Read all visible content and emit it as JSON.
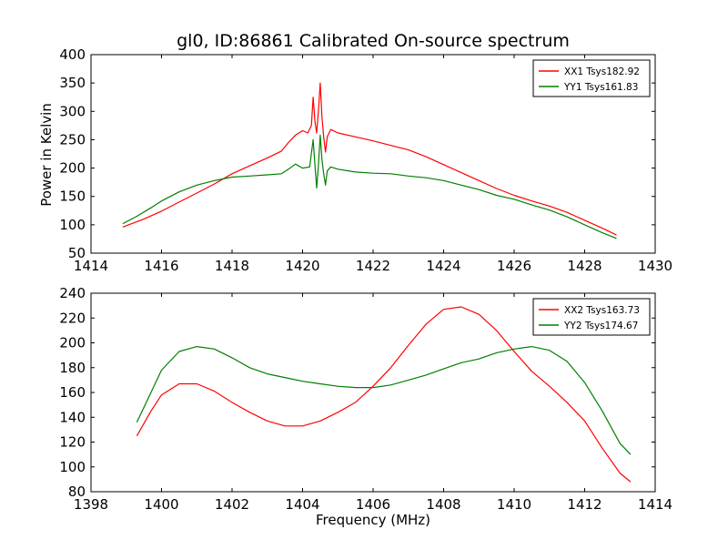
{
  "colors": {
    "series_a": "#ff0000",
    "series_b": "#007f00",
    "axes": "#000000",
    "background": "#ffffff"
  },
  "chart_data": [
    {
      "type": "line",
      "title": "gl0, ID:86861 Calibrated On-source spectrum",
      "xlabel": "",
      "ylabel": "Power in Kelvin",
      "xlim": [
        1414,
        1430
      ],
      "ylim": [
        50,
        400
      ],
      "xticks": [
        1414,
        1416,
        1418,
        1420,
        1422,
        1424,
        1426,
        1428,
        1430
      ],
      "yticks": [
        50,
        100,
        150,
        200,
        250,
        300,
        350,
        400
      ],
      "grid": false,
      "legend": "top-right",
      "series": [
        {
          "name": "XX1 Tsys182.92",
          "color": "#ff0000",
          "points": [
            [
              1414.9,
              96
            ],
            [
              1415.5,
              110
            ],
            [
              1416,
              124
            ],
            [
              1416.5,
              140
            ],
            [
              1417,
              156
            ],
            [
              1417.5,
              172
            ],
            [
              1418,
              190
            ],
            [
              1418.5,
              204
            ],
            [
              1419,
              218
            ],
            [
              1419.4,
              230
            ],
            [
              1419.6,
              245
            ],
            [
              1419.8,
              258
            ],
            [
              1420.0,
              266
            ],
            [
              1420.15,
              262
            ],
            [
              1420.25,
              275
            ],
            [
              1420.3,
              325
            ],
            [
              1420.35,
              282
            ],
            [
              1420.4,
              262
            ],
            [
              1420.45,
              300
            ],
            [
              1420.5,
              350
            ],
            [
              1420.55,
              290
            ],
            [
              1420.6,
              255
            ],
            [
              1420.65,
              228
            ],
            [
              1420.7,
              255
            ],
            [
              1420.8,
              268
            ],
            [
              1421,
              262
            ],
            [
              1421.5,
              255
            ],
            [
              1422,
              248
            ],
            [
              1422.5,
              240
            ],
            [
              1423,
              232
            ],
            [
              1423.5,
              220
            ],
            [
              1424,
              206
            ],
            [
              1424.5,
              192
            ],
            [
              1425,
              178
            ],
            [
              1425.5,
              164
            ],
            [
              1426,
              152
            ],
            [
              1426.5,
              142
            ],
            [
              1427,
              133
            ],
            [
              1427.5,
              122
            ],
            [
              1428,
              108
            ],
            [
              1428.5,
              94
            ],
            [
              1428.9,
              82
            ]
          ]
        },
        {
          "name": "YY1 Tsys161.83",
          "color": "#007f00",
          "points": [
            [
              1414.9,
              102
            ],
            [
              1415.3,
              115
            ],
            [
              1415.7,
              130
            ],
            [
              1416,
              142
            ],
            [
              1416.5,
              158
            ],
            [
              1417,
              170
            ],
            [
              1417.5,
              178
            ],
            [
              1418,
              184
            ],
            [
              1418.5,
              186
            ],
            [
              1419,
              188
            ],
            [
              1419.4,
              190
            ],
            [
              1419.6,
              198
            ],
            [
              1419.8,
              207
            ],
            [
              1420.0,
              200
            ],
            [
              1420.2,
              202
            ],
            [
              1420.3,
              250
            ],
            [
              1420.35,
              205
            ],
            [
              1420.4,
              165
            ],
            [
              1420.45,
              205
            ],
            [
              1420.5,
              258
            ],
            [
              1420.55,
              215
            ],
            [
              1420.6,
              190
            ],
            [
              1420.65,
              170
            ],
            [
              1420.7,
              195
            ],
            [
              1420.8,
              202
            ],
            [
              1421,
              198
            ],
            [
              1421.5,
              193
            ],
            [
              1422,
              191
            ],
            [
              1422.5,
              190
            ],
            [
              1423,
              186
            ],
            [
              1423.5,
              183
            ],
            [
              1424,
              178
            ],
            [
              1424.5,
              170
            ],
            [
              1425,
              162
            ],
            [
              1425.5,
              152
            ],
            [
              1426,
              145
            ],
            [
              1426.5,
              135
            ],
            [
              1427,
              126
            ],
            [
              1427.5,
              114
            ],
            [
              1428,
              100
            ],
            [
              1428.5,
              86
            ],
            [
              1428.9,
              76
            ]
          ]
        }
      ]
    },
    {
      "type": "line",
      "title": "",
      "xlabel": "Frequency (MHz)",
      "ylabel": "",
      "xlim": [
        1398,
        1414
      ],
      "ylim": [
        80,
        240
      ],
      "xticks": [
        1398,
        1400,
        1402,
        1404,
        1406,
        1408,
        1410,
        1412,
        1414
      ],
      "yticks": [
        80,
        100,
        120,
        140,
        160,
        180,
        200,
        220,
        240
      ],
      "grid": false,
      "legend": "top-right",
      "series": [
        {
          "name": "XX2 Tsys163.73",
          "color": "#ff0000",
          "points": [
            [
              1399.3,
              125
            ],
            [
              1399.7,
              145
            ],
            [
              1400,
              158
            ],
            [
              1400.5,
              167
            ],
            [
              1401,
              167
            ],
            [
              1401.5,
              161
            ],
            [
              1402,
              152
            ],
            [
              1402.5,
              144
            ],
            [
              1403,
              137
            ],
            [
              1403.5,
              133
            ],
            [
              1404,
              133
            ],
            [
              1404.5,
              137
            ],
            [
              1405,
              144
            ],
            [
              1405.5,
              152
            ],
            [
              1406,
              165
            ],
            [
              1406.5,
              180
            ],
            [
              1407,
              198
            ],
            [
              1407.5,
              215
            ],
            [
              1408,
              227
            ],
            [
              1408.5,
              229
            ],
            [
              1409,
              223
            ],
            [
              1409.5,
              210
            ],
            [
              1410,
              193
            ],
            [
              1410.5,
              177
            ],
            [
              1411,
              165
            ],
            [
              1411.5,
              152
            ],
            [
              1412,
              137
            ],
            [
              1412.5,
              115
            ],
            [
              1413,
              95
            ],
            [
              1413.3,
              88
            ]
          ]
        },
        {
          "name": "YY2 Tsys174.67",
          "color": "#007f00",
          "points": [
            [
              1399.3,
              136
            ],
            [
              1399.7,
              160
            ],
            [
              1400,
              178
            ],
            [
              1400.5,
              193
            ],
            [
              1401,
              197
            ],
            [
              1401.5,
              195
            ],
            [
              1402,
              188
            ],
            [
              1402.5,
              180
            ],
            [
              1403,
              175
            ],
            [
              1403.5,
              172
            ],
            [
              1404,
              169
            ],
            [
              1404.5,
              167
            ],
            [
              1405,
              165
            ],
            [
              1405.5,
              164
            ],
            [
              1406,
              164
            ],
            [
              1406.5,
              166
            ],
            [
              1407,
              170
            ],
            [
              1407.5,
              174
            ],
            [
              1408,
              179
            ],
            [
              1408.5,
              184
            ],
            [
              1409,
              187
            ],
            [
              1409.5,
              192
            ],
            [
              1410,
              195
            ],
            [
              1410.5,
              197
            ],
            [
              1411,
              194
            ],
            [
              1411.5,
              185
            ],
            [
              1412,
              168
            ],
            [
              1412.5,
              145
            ],
            [
              1413,
              119
            ],
            [
              1413.3,
              110
            ]
          ]
        }
      ]
    }
  ]
}
